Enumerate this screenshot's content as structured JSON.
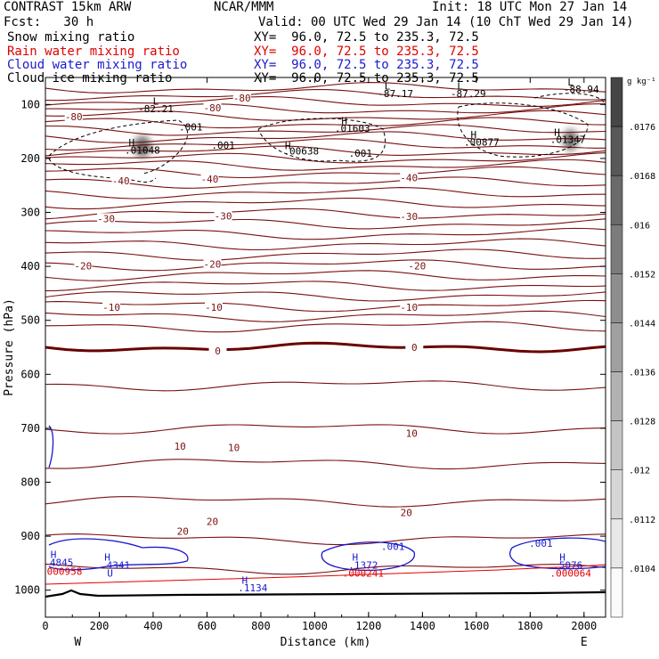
{
  "header": {
    "model": "CONTRAST 15km ARW",
    "org": "NCAR/MMM",
    "init": "Init: 18 UTC Mon 27 Jan 14",
    "fcst": "Fcst:   30 h",
    "valid": "Valid: 00 UTC Wed 29 Jan 14 (10 ChT Wed 29 Jan 14)"
  },
  "fields": [
    {
      "name": "Snow mixing ratio",
      "xy": "XY=  96.0, 72.5 to 235.3, 72.5",
      "color": "#000000"
    },
    {
      "name": "Rain water mixing ratio",
      "xy": "XY=  96.0, 72.5 to 235.3, 72.5",
      "color": "#e00000"
    },
    {
      "name": "Cloud water mixing ratio",
      "xy": "XY=  96.0, 72.5 to 235.3, 72.5",
      "color": "#1a1ad0"
    },
    {
      "name": "Cloud ice mixing ratio",
      "xy": "XY=  96.0, 72.5 to 235.3, 72.5",
      "color": "#000000"
    }
  ],
  "colors": {
    "temperature": "#7a1010",
    "zero_isotherm": "#6a0000",
    "rain": "#e00000",
    "cloud_water": "#1a1ad0",
    "ice": "#000000",
    "terrain": "#000000"
  },
  "chart_data": {
    "type": "cross-section",
    "xlabel": "Distance (km)",
    "ylabel": "Pressure (hPa)",
    "xlim": [
      0,
      2080
    ],
    "ylim": [
      1050,
      50
    ],
    "x_ticks": [
      0,
      200,
      400,
      600,
      800,
      1000,
      1200,
      1400,
      1600,
      1800,
      2000
    ],
    "y_ticks": [
      100,
      200,
      300,
      400,
      500,
      600,
      700,
      800,
      900,
      1000
    ],
    "x_endpoints": [
      "W",
      "E"
    ],
    "colorbar": {
      "units": "g kg⁻¹",
      "labels": [
        ".0176",
        ".0168",
        ".016",
        ".0152",
        ".0144",
        ".0136",
        ".0128",
        ".012",
        ".0112",
        ".0104"
      ],
      "min": 0.01,
      "max": 0.018
    },
    "isotherm_interval": 5,
    "isotherm_labels": [
      {
        "value": "-80",
        "x": 105,
        "p": 124
      },
      {
        "value": "-80",
        "x": 730,
        "p": 90
      },
      {
        "value": "-80",
        "x": 620,
        "p": 108
      },
      {
        "value": "-40",
        "x": 280,
        "p": 243
      },
      {
        "value": "-40",
        "x": 610,
        "p": 240
      },
      {
        "value": "-40",
        "x": 1350,
        "p": 237
      },
      {
        "value": "-30",
        "x": 225,
        "p": 313
      },
      {
        "value": "-30",
        "x": 660,
        "p": 308
      },
      {
        "value": "-30",
        "x": 1350,
        "p": 309
      },
      {
        "value": "-20",
        "x": 140,
        "p": 401
      },
      {
        "value": "-20",
        "x": 620,
        "p": 397
      },
      {
        "value": "-20",
        "x": 1380,
        "p": 401
      },
      {
        "value": "-10",
        "x": 245,
        "p": 477
      },
      {
        "value": "-10",
        "x": 625,
        "p": 477
      },
      {
        "value": "-10",
        "x": 1350,
        "p": 477
      },
      {
        "value": "0",
        "x": 640,
        "p": 558
      },
      {
        "value": "0",
        "x": 1370,
        "p": 552
      },
      {
        "value": "10",
        "x": 500,
        "p": 735
      },
      {
        "value": "10",
        "x": 700,
        "p": 737
      },
      {
        "value": "10",
        "x": 1360,
        "p": 711
      },
      {
        "value": "20",
        "x": 510,
        "p": 892
      },
      {
        "value": "20",
        "x": 620,
        "p": 874
      },
      {
        "value": "20",
        "x": 1340,
        "p": 858
      }
    ],
    "ice_contours": [
      {
        "value": ".001",
        "x": 540,
        "p": 148
      },
      {
        "value": ".001",
        "x": 660,
        "p": 182
      },
      {
        "value": ".001",
        "x": 1170,
        "p": 197
      }
    ],
    "cloud_water_contours": [
      {
        "value": ".001",
        "x": 1290,
        "p": 925
      },
      {
        "value": ".001",
        "x": 1840,
        "p": 920
      }
    ],
    "extrema": [
      {
        "type": "L",
        "x": 410,
        "p": 100,
        "color": "ice"
      },
      {
        "type": "L",
        "x": 1270,
        "p": 72,
        "color": "ice"
      },
      {
        "type": "L",
        "x": 1540,
        "p": 72,
        "color": "ice"
      },
      {
        "type": "L",
        "x": 1950,
        "p": 65,
        "color": "ice"
      },
      {
        "type": "H",
        "x": 320,
        "p": 177,
        "color": "ice"
      },
      {
        "type": "H",
        "x": 900,
        "p": 183,
        "color": "ice"
      },
      {
        "type": "H",
        "x": 1110,
        "p": 137,
        "color": "ice"
      },
      {
        "type": "H",
        "x": 1590,
        "p": 162,
        "color": "ice"
      },
      {
        "type": "H",
        "x": 1900,
        "p": 158,
        "color": "ice"
      },
      {
        "type": "H",
        "x": 30,
        "p": 940,
        "color": "cloud_water"
      },
      {
        "type": "H",
        "x": 230,
        "p": 945,
        "color": "cloud_water"
      },
      {
        "type": "H",
        "x": 740,
        "p": 988,
        "color": "cloud_water"
      },
      {
        "type": "H",
        "x": 1150,
        "p": 945,
        "color": "cloud_water"
      },
      {
        "type": "H",
        "x": 1920,
        "p": 945,
        "color": "cloud_water"
      }
    ],
    "values": [
      {
        "text": "-82.21",
        "x": 410,
        "p": 114,
        "color": "ice"
      },
      {
        "text": "-87.17",
        "x": 1300,
        "p": 86,
        "color": "ice"
      },
      {
        "text": "-87.29",
        "x": 1570,
        "p": 86,
        "color": "ice"
      },
      {
        "text": "-88.94",
        "x": 1990,
        "p": 78,
        "color": "ice"
      },
      {
        "text": ".01048",
        "x": 360,
        "p": 191,
        "color": "ice"
      },
      {
        "text": ".00638",
        "x": 950,
        "p": 193,
        "color": "ice"
      },
      {
        "text": ".01603",
        "x": 1140,
        "p": 151,
        "color": "ice"
      },
      {
        "text": ".00877",
        "x": 1620,
        "p": 176,
        "color": "ice"
      },
      {
        "text": ".01347",
        "x": 1940,
        "p": 171,
        "color": "ice"
      },
      {
        "text": "4845",
        "x": 60,
        "p": 955,
        "color": "cloud_water"
      },
      {
        "text": ".4341",
        "x": 260,
        "p": 960,
        "color": "cloud_water"
      },
      {
        "text": ".1134",
        "x": 770,
        "p": 1002,
        "color": "cloud_water"
      },
      {
        "text": ".1372",
        "x": 1180,
        "p": 960,
        "color": "cloud_water"
      },
      {
        "text": ".5076",
        "x": 1940,
        "p": 960,
        "color": "cloud_water"
      },
      {
        "text": ".000958",
        "x": 60,
        "p": 972,
        "color": "rain"
      },
      {
        "text": "U",
        "x": 240,
        "p": 975,
        "color": "cloud_water"
      },
      {
        "text": ".000241",
        "x": 1180,
        "p": 975,
        "color": "rain"
      },
      {
        "text": ".000064",
        "x": 1950,
        "p": 975,
        "color": "rain"
      }
    ]
  }
}
